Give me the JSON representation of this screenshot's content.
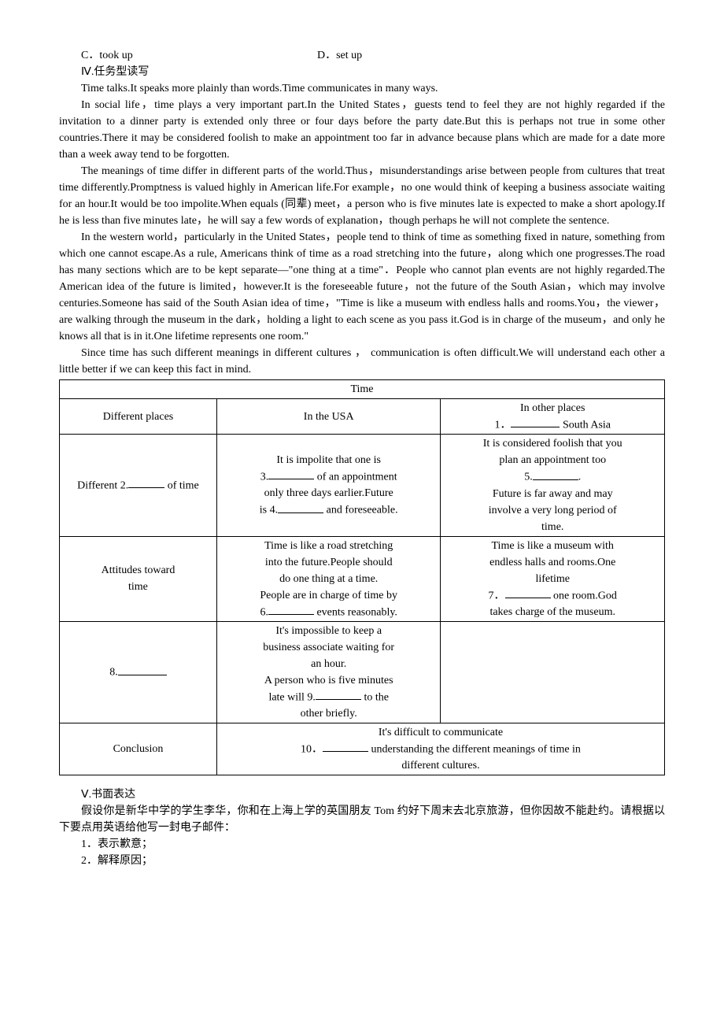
{
  "options": {
    "c": "C．took up",
    "d": "D．set up"
  },
  "section4": {
    "title": "Ⅳ.任务型读写",
    "p1": "Time talks.It speaks more plainly than words.Time communicates in many ways.",
    "p2": "In social life，time plays a very important part.In the United States，guests tend to feel they are not highly regarded if the invitation to a dinner party is extended only three or four days before the party date.But this is perhaps not true in some other countries.There it may be considered foolish to make an appointment too far in advance because plans which are made for a date more than a week away tend to be forgotten.",
    "p3": "The meanings of time differ in different parts of the world.Thus，misunderstandings arise between people from cultures that treat time differently.Promptness is valued highly in American life.For example，no one would think of keeping a business associate waiting for an hour.It would be too impolite.When equals (同辈) meet，a person who is five minutes late is expected to make a short apology.If he is less than five minutes late，he will say a few words of explanation，though perhaps he will not complete the sentence.",
    "p4": "In the western world，particularly in the United States，people tend to think of time as something fixed in nature, something from which one cannot escape.As a rule, Americans think of time as a road stretching into the future，along which one progresses.The road has many sections which are to be kept separate—\"one thing at a time\"．People who cannot plan events are not highly regarded.The American idea of the future is limited，however.It is the foreseeable future，not the future of the South Asian，which may involve centuries.Someone has said of the South Asian idea of time，\"Time is like a museum with endless halls and rooms.You，the viewer，are walking through the museum in the dark，holding a light to each scene as you pass it.God is in charge of the museum，and only he knows all that is in it.One lifetime represents one room.\"",
    "p5": "Since time has such different meanings in different cultures ， communication is often difficult.We will understand each other a little better if we can keep this fact in mind."
  },
  "table": {
    "title": "Time",
    "row1": {
      "c1": "Different places",
      "c2": "In the USA",
      "c3a": "In other places",
      "c3b_pre": "1．",
      "c3b_post": " South Asia"
    },
    "row2": {
      "c1a": "Different 2.",
      "c1b": " of time",
      "c2a": "It is impolite that one is",
      "c2b_pre": "3.",
      "c2b_post": " of an appointment",
      "c2c": "only three days earlier.Future",
      "c2d_pre": "is 4.",
      "c2d_post": " and foreseeable.",
      "c3a": "It is considered foolish that you",
      "c3b": "plan an appointment too",
      "c3c_pre": "5.",
      "c3c_post": ".",
      "c3d": "Future is far away and may",
      "c3e": "involve a very long period of",
      "c3f": "time."
    },
    "row3": {
      "c1a": "Attitudes toward",
      "c1b": "time",
      "c2a": "Time is like a road stretching",
      "c2b": "into the future.People should",
      "c2c": "do one thing at a time.",
      "c2d": "People are in charge of time by",
      "c2e_pre": "6.",
      "c2e_post": " events reasonably.",
      "c3a": "Time is like a museum with",
      "c3b": "endless halls and rooms.One",
      "c3c": "lifetime",
      "c3d_pre": "7．",
      "c3d_post": " one room.God",
      "c3e": "takes charge of the museum."
    },
    "row4": {
      "c1_pre": "8.",
      "c2a": "It's impossible to keep a",
      "c2b": "business associate waiting for",
      "c2c": "an hour.",
      "c2d": "A person who is five minutes",
      "c2e_pre": "late will 9.",
      "c2e_post": " to the",
      "c2f": "other briefly."
    },
    "row5": {
      "c1": "Conclusion",
      "c2a": "It's difficult to communicate",
      "c2b_pre": "10．",
      "c2b_post": " understanding the different meanings of time in",
      "c2c": "different cultures."
    }
  },
  "section5": {
    "title": "Ⅴ.书面表达",
    "p1": "假设你是新华中学的学生李华，你和在上海上学的英国朋友 Tom 约好下周末去北京旅游，但你因故不能赴约。请根据以下要点用英语给他写一封电子邮件：",
    "li1": "1．表示歉意；",
    "li2": "2．解释原因；"
  }
}
